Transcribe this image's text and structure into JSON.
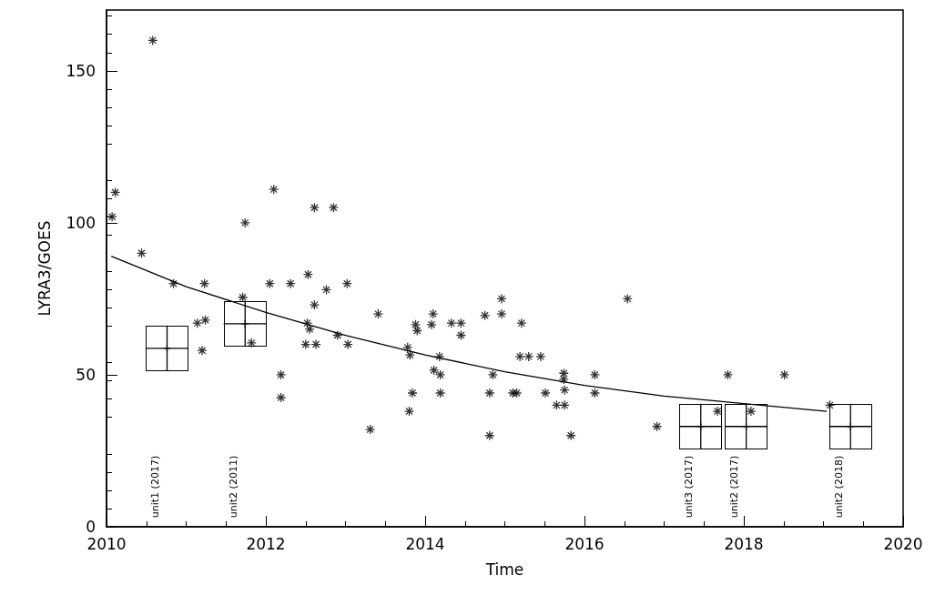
{
  "chart_data": {
    "type": "scatter",
    "xlabel": "Time",
    "ylabel": "LYRA3/GOES",
    "xlim": [
      2010,
      2020
    ],
    "xticks": [
      2010,
      2012,
      2014,
      2016,
      2018,
      2020
    ],
    "ylim": [
      0,
      170
    ],
    "yticks": [
      0,
      50,
      100,
      150
    ],
    "grid": false,
    "series": [
      {
        "marker": "cross",
        "color": "#000000",
        "x": [
          2010.11,
          2010.07,
          2010.58,
          2010.44,
          2011.74,
          2012.1,
          2012.61,
          2012.85,
          2010.84,
          2011.23,
          2012.05,
          2012.31,
          2012.53,
          2013.02,
          2012.76,
          2011.71,
          2012.61,
          2011.14,
          2011.24,
          2011.2,
          2011.82,
          2012.52,
          2012.55,
          2012.5,
          2012.63,
          2012.9,
          2013.03,
          2012.19,
          2012.19,
          2013.31,
          2013.41,
          2013.78,
          2013.81,
          2013.84,
          2013.8,
          2013.88,
          2013.9,
          2014.1,
          2014.08,
          2014.18,
          2014.11,
          2014.19,
          2014.19,
          2014.33,
          2014.45,
          2014.45,
          2014.75,
          2014.85,
          2014.81,
          2014.81,
          2014.96,
          2014.96,
          2015.21,
          2015.19,
          2015.3,
          2015.45,
          2015.1,
          2015.15,
          2015.51,
          2015.74,
          2015.74,
          2015.75,
          2015.65,
          2015.75,
          2015.83,
          2016.13,
          2016.13,
          2016.54,
          2016.91,
          2017.67,
          2017.8,
          2018.09,
          2018.51,
          2019.08
        ],
        "values": [
          110,
          102,
          160,
          90,
          100,
          111,
          105,
          105,
          80,
          80,
          80,
          80,
          83,
          80,
          78,
          75.5,
          73,
          67,
          68,
          58,
          60.5,
          67,
          65,
          60,
          60,
          63,
          60,
          50,
          42.5,
          32,
          70,
          59,
          56.5,
          44,
          38,
          66.5,
          64.5,
          70,
          66.5,
          56,
          51.5,
          50,
          44,
          67,
          67,
          63,
          69.5,
          50,
          44,
          30,
          75,
          70,
          67,
          56,
          56,
          56,
          44,
          44,
          44,
          50.5,
          48.5,
          45,
          40,
          40,
          30,
          50,
          44,
          75,
          33,
          38,
          50,
          38,
          50,
          40
        ]
      },
      {
        "marker": "cross",
        "color": "#000000",
        "x": [
          2010.76,
          2011.74,
          2017.46,
          2018.03,
          2019.34
        ],
        "values": [
          58.7,
          66.8,
          33,
          33,
          33
        ],
        "errors": [
          7.5,
          7.5,
          7.5,
          7.5,
          7.5
        ],
        "xerrors": [
          0.27,
          0.27,
          0.27,
          0.27,
          0.27
        ]
      },
      {
        "type": "line",
        "marker": "none",
        "color": "#000000",
        "x": [
          2010.06,
          2011,
          2012,
          2013,
          2014,
          2015,
          2016,
          2017,
          2018,
          2019.04
        ],
        "values": [
          89,
          79,
          70.5,
          63,
          56.5,
          51,
          46.5,
          43,
          40.5,
          38
        ]
      }
    ],
    "annotations": [
      "unit1 (2017)",
      "unit2 (2011)",
      "unit3 (2017)",
      "unit2 (2017)",
      "unit2 (2018)"
    ]
  }
}
